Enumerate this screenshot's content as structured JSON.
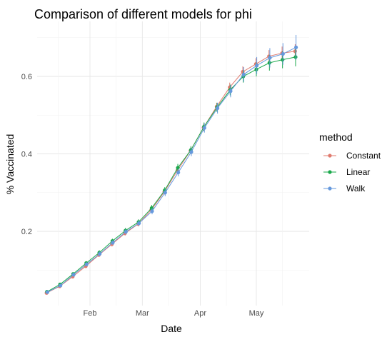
{
  "chart_data": {
    "type": "line",
    "title": "Comparison of different models for phi",
    "xlabel": "Date",
    "ylabel": "% Vaccinated",
    "x_ticks": [
      "Feb",
      "Mar",
      "Apr",
      "May"
    ],
    "y_ticks": [
      0.2,
      0.4,
      0.6
    ],
    "legend_title": "method",
    "legend_position": "right",
    "grid": true,
    "x": [
      "2021-01-09",
      "2021-01-16",
      "2021-01-23",
      "2021-01-30",
      "2021-02-06",
      "2021-02-13",
      "2021-02-20",
      "2021-02-27",
      "2021-03-06",
      "2021-03-13",
      "2021-03-20",
      "2021-03-27",
      "2021-04-03",
      "2021-04-10",
      "2021-04-17",
      "2021-04-24",
      "2021-05-01",
      "2021-05-08",
      "2021-05-15",
      "2021-05-22"
    ],
    "series": [
      {
        "name": "Constant",
        "color": "#e07b6f",
        "values": [
          0.041,
          0.058,
          0.083,
          0.11,
          0.139,
          0.167,
          0.195,
          0.219,
          0.255,
          0.302,
          0.357,
          0.408,
          0.468,
          0.522,
          0.572,
          0.612,
          0.632,
          0.652,
          0.66,
          0.665
        ],
        "error": [
          0.003,
          0.004,
          0.004,
          0.005,
          0.005,
          0.006,
          0.006,
          0.006,
          0.007,
          0.007,
          0.008,
          0.008,
          0.009,
          0.01,
          0.012,
          0.014,
          0.015,
          0.016,
          0.017,
          0.018
        ]
      },
      {
        "name": "Linear",
        "color": "#1aa84b",
        "values": [
          0.044,
          0.063,
          0.09,
          0.118,
          0.145,
          0.175,
          0.202,
          0.224,
          0.26,
          0.306,
          0.364,
          0.41,
          0.47,
          0.52,
          0.565,
          0.6,
          0.618,
          0.635,
          0.643,
          0.65
        ],
        "error": [
          0.003,
          0.004,
          0.004,
          0.005,
          0.006,
          0.006,
          0.007,
          0.007,
          0.008,
          0.008,
          0.01,
          0.01,
          0.011,
          0.012,
          0.014,
          0.016,
          0.018,
          0.02,
          0.022,
          0.024
        ]
      },
      {
        "name": "Walk",
        "color": "#6699dd",
        "values": [
          0.043,
          0.06,
          0.088,
          0.115,
          0.142,
          0.171,
          0.199,
          0.221,
          0.252,
          0.3,
          0.352,
          0.405,
          0.467,
          0.518,
          0.562,
          0.605,
          0.628,
          0.648,
          0.658,
          0.675
        ],
        "error": [
          0.003,
          0.004,
          0.005,
          0.005,
          0.006,
          0.006,
          0.007,
          0.007,
          0.008,
          0.009,
          0.01,
          0.011,
          0.012,
          0.014,
          0.016,
          0.019,
          0.022,
          0.025,
          0.028,
          0.032
        ]
      }
    ]
  }
}
